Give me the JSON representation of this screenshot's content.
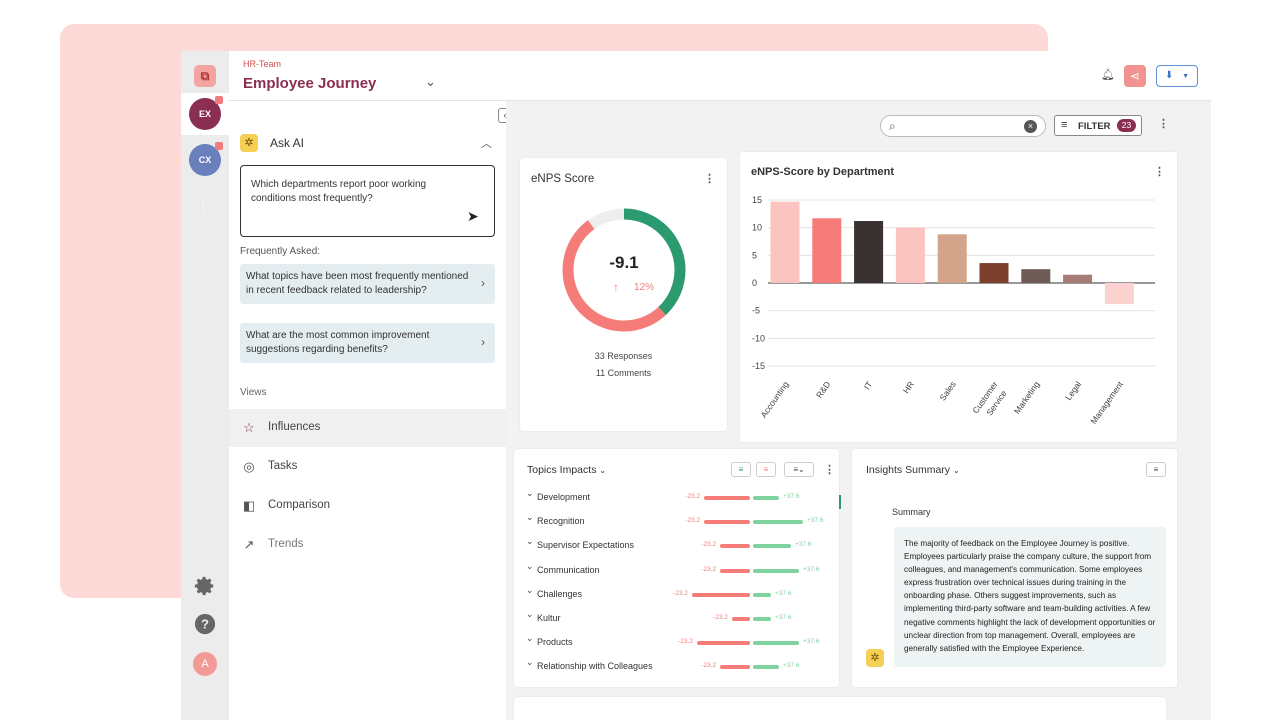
{
  "header": {
    "team": "HR-Team",
    "title": "Employee Journey"
  },
  "rail": {
    "ex_label": "EX",
    "cx_label": "CX",
    "avatar_initial": "A"
  },
  "ai": {
    "title": "Ask AI",
    "question": "Which departments report poor working conditions most frequently?",
    "faq_heading": "Frequently Asked:",
    "faqs": [
      "What topics have been most frequently mentioned in recent feedback related to leadership?",
      "What are the most common improvement suggestions regarding benefits?"
    ]
  },
  "views": {
    "heading": "Views",
    "items": [
      {
        "label": "Influences",
        "icon": "star-icon"
      },
      {
        "label": "Tasks",
        "icon": "check-circle-icon"
      },
      {
        "label": "Comparison",
        "icon": "compare-icon"
      },
      {
        "label": "Trends",
        "icon": "trend-icon"
      }
    ]
  },
  "toolbar": {
    "filter_label": "FILTER",
    "filter_count": "23"
  },
  "enps": {
    "title": "eNPS Score",
    "score": "-9.1",
    "change": "12%",
    "responses": "33 Responses",
    "comments": "11 Comments",
    "promoter_share": 0.38
  },
  "chart_data": {
    "type": "bar",
    "title": "eNPS-Score by Department",
    "categories": [
      "Accounting",
      "R&D",
      "IT",
      "HR",
      "Sales",
      "Customer Service",
      "Marketing",
      "Legal",
      "Management"
    ],
    "values": [
      14.7,
      11.7,
      11.2,
      10,
      8.8,
      3.6,
      2.5,
      1.5,
      -3.8
    ],
    "colors": [
      "#fbc4c1",
      "#f57c78",
      "#3a3230",
      "#fbc4c1",
      "#d3a48a",
      "#7a3f2d",
      "#6d5c58",
      "#a77c76",
      "#fbd2cf"
    ],
    "ylim": [
      -15,
      15
    ],
    "yticks": [
      15,
      10,
      5,
      0,
      -5,
      -10,
      -15
    ],
    "grid": true
  },
  "topics": {
    "title": "Topics Impacts",
    "items": [
      {
        "label": "Development",
        "neg": "-23.2",
        "pos": "+37.6",
        "negw": 46,
        "posw": 26
      },
      {
        "label": "Recognition",
        "neg": "-23.2",
        "pos": "+37.6",
        "negw": 46,
        "posw": 50
      },
      {
        "label": "Supervisor Expectations",
        "neg": "-23.2",
        "pos": "+37.6",
        "negw": 30,
        "posw": 38
      },
      {
        "label": "Communication",
        "neg": "-23.2",
        "pos": "+37.6",
        "negw": 30,
        "posw": 46
      },
      {
        "label": "Challenges",
        "neg": "-23.2",
        "pos": "+37.6",
        "negw": 58,
        "posw": 18
      },
      {
        "label": "Kultur",
        "neg": "-23.2",
        "pos": "+37.6",
        "negw": 18,
        "posw": 18
      },
      {
        "label": "Products",
        "neg": "-23.2",
        "pos": "+37.6",
        "negw": 53,
        "posw": 46
      },
      {
        "label": "Relationship with Colleagues",
        "neg": "-23.2",
        "pos": "+37.6",
        "negw": 30,
        "posw": 26
      }
    ]
  },
  "insights": {
    "title": "Insights Summary",
    "subtitle": "Summary",
    "text": "The majority of feedback on the Employee Journey is positive. Employees particularly praise the company culture, the support from colleagues, and management's communication. Some employees express frustration over technical issues during training in the onboarding phase. Others suggest improvements, such as implementing third-party software and team-building activities. A few negative comments highlight the lack of development opportunities or unclear direction from top management. Overall, employees are generally satisfied with the Employee Experience."
  }
}
